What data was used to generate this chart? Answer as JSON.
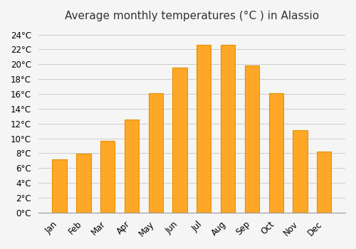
{
  "months": [
    "Jan",
    "Feb",
    "Mar",
    "Apr",
    "May",
    "Jun",
    "Jul",
    "Aug",
    "Sep",
    "Oct",
    "Nov",
    "Dec"
  ],
  "temperatures": [
    7.2,
    7.9,
    9.7,
    12.5,
    16.1,
    19.5,
    22.6,
    22.6,
    19.8,
    16.1,
    11.1,
    8.2
  ],
  "bar_color": "#FFA726",
  "bar_edge_color": "#E59200",
  "title": "Average monthly temperatures (°C ) in Alassio",
  "ylim": [
    0,
    25
  ],
  "yticks": [
    0,
    2,
    4,
    6,
    8,
    10,
    12,
    14,
    16,
    18,
    20,
    22,
    24
  ],
  "background_color": "#f5f5f5",
  "grid_color": "#cccccc",
  "title_fontsize": 11,
  "tick_fontsize": 8.5
}
